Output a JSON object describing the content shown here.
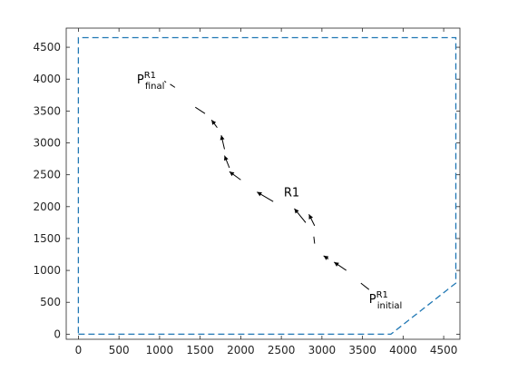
{
  "chart_data": {
    "type": "line",
    "xlim": [
      -150,
      4700
    ],
    "ylim": [
      -80,
      4800
    ],
    "x_ticks": [
      0,
      500,
      1000,
      1500,
      2000,
      2500,
      3000,
      3500,
      4000,
      4500
    ],
    "y_ticks": [
      0,
      500,
      1000,
      1500,
      2000,
      2500,
      3000,
      3500,
      4000,
      4500
    ],
    "grid": false,
    "boundary": {
      "style": "dashed",
      "color": "#1f77b4",
      "points": [
        [
          0,
          0
        ],
        [
          3850,
          0
        ],
        [
          4650,
          800
        ],
        [
          4650,
          4650
        ],
        [
          0,
          4650
        ],
        [
          0,
          0
        ]
      ]
    },
    "trajectory": {
      "color": "#000000",
      "segments": [
        {
          "from": [
            3580,
            700
          ],
          "to": [
            3480,
            800
          ],
          "arrow": false
        },
        {
          "from": [
            3300,
            1000
          ],
          "to": [
            3150,
            1130
          ],
          "arrow": true
        },
        {
          "from": [
            3080,
            1180
          ],
          "to": [
            3020,
            1230
          ],
          "arrow": true
        },
        {
          "from": [
            2910,
            1420
          ],
          "to": [
            2900,
            1530
          ],
          "arrow": false
        },
        {
          "from": [
            2910,
            1700
          ],
          "to": [
            2840,
            1880
          ],
          "arrow": true
        },
        {
          "from": [
            2800,
            1750
          ],
          "to": [
            2660,
            1970
          ],
          "arrow": true
        },
        {
          "from": [
            2400,
            2080
          ],
          "to": [
            2200,
            2230
          ],
          "arrow": true
        },
        {
          "from": [
            2000,
            2420
          ],
          "to": [
            1860,
            2550
          ],
          "arrow": true
        },
        {
          "from": [
            1860,
            2610
          ],
          "to": [
            1800,
            2800
          ],
          "arrow": true
        },
        {
          "from": [
            1800,
            2900
          ],
          "to": [
            1760,
            3120
          ],
          "arrow": true
        },
        {
          "from": [
            1710,
            3240
          ],
          "to": [
            1640,
            3360
          ],
          "arrow": true
        },
        {
          "from": [
            1560,
            3460
          ],
          "to": [
            1440,
            3560
          ],
          "arrow": false
        },
        {
          "from": [
            1190,
            3870
          ],
          "to": [
            1130,
            3920
          ],
          "arrow": false
        },
        {
          "from": [
            1080,
            3950
          ],
          "to": [
            1060,
            3970
          ],
          "arrow": false
        }
      ]
    },
    "annotations": [
      {
        "id": "p-final",
        "base": "P",
        "sup": "R1",
        "sub": "final",
        "x": 720,
        "y": 3930
      },
      {
        "id": "r1",
        "base": "R1",
        "x": 2530,
        "y": 2160
      },
      {
        "id": "p-initial",
        "base": "P",
        "sup": "R1",
        "sub": "initial",
        "x": 3580,
        "y": 490
      }
    ]
  }
}
